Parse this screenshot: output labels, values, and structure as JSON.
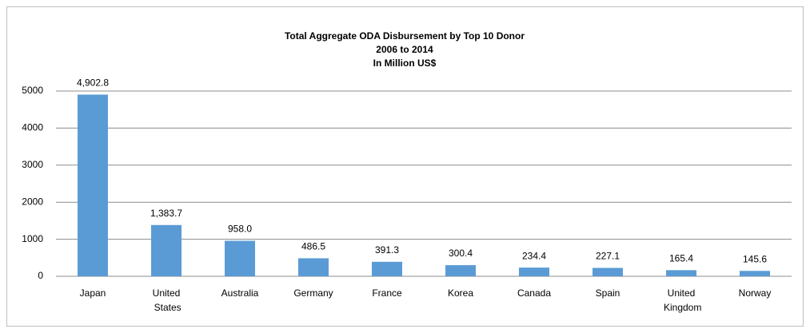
{
  "chart_data": {
    "type": "bar",
    "title": "Total Aggregate ODA Disbursement by Top 10 Donor",
    "subtitle": [
      "2006 to 2014",
      "In Million US$"
    ],
    "categories": [
      "Japan",
      "United States",
      "Australia",
      "Germany",
      "France",
      "Korea",
      "Canada",
      "Spain",
      "United Kingdom",
      "Norway"
    ],
    "values": [
      4902.8,
      1383.7,
      958.0,
      486.5,
      391.3,
      300.4,
      234.4,
      227.1,
      165.4,
      145.6
    ],
    "value_labels": [
      "4,902.8",
      "1,383.7",
      "958.0",
      "486.5",
      "391.3",
      "300.4",
      "234.4",
      "227.1",
      "165.4",
      "145.6"
    ],
    "color": "#5b9bd5",
    "ylim": [
      0,
      5000
    ],
    "yticks": [
      0,
      1000,
      2000,
      3000,
      4000,
      5000
    ],
    "grid": true
  }
}
